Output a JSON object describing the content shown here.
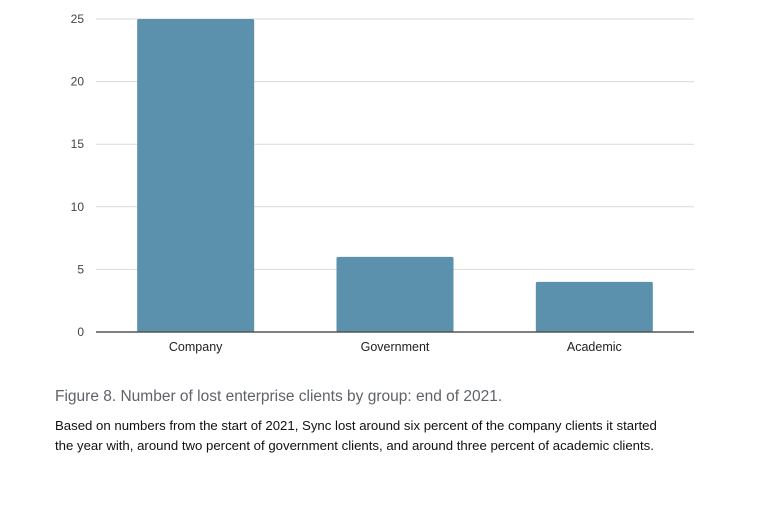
{
  "chart_data": {
    "type": "bar",
    "categories": [
      "Company",
      "Government",
      "Academic"
    ],
    "values": [
      25,
      6,
      4
    ],
    "yticks": [
      0,
      5,
      10,
      15,
      20,
      25
    ],
    "ylim": [
      0,
      25
    ],
    "grid": true,
    "bar_color": "#5b91ad",
    "grid_color": "#d9d9d9",
    "axis_color": "#555555"
  },
  "caption": "Figure 8. Number of lost enterprise clients by group: end of 2021.",
  "description": "Based on numbers from the start of 2021, Sync lost around six percent of the company clients it started the year with, around two percent of government clients, and around three percent of academic clients."
}
